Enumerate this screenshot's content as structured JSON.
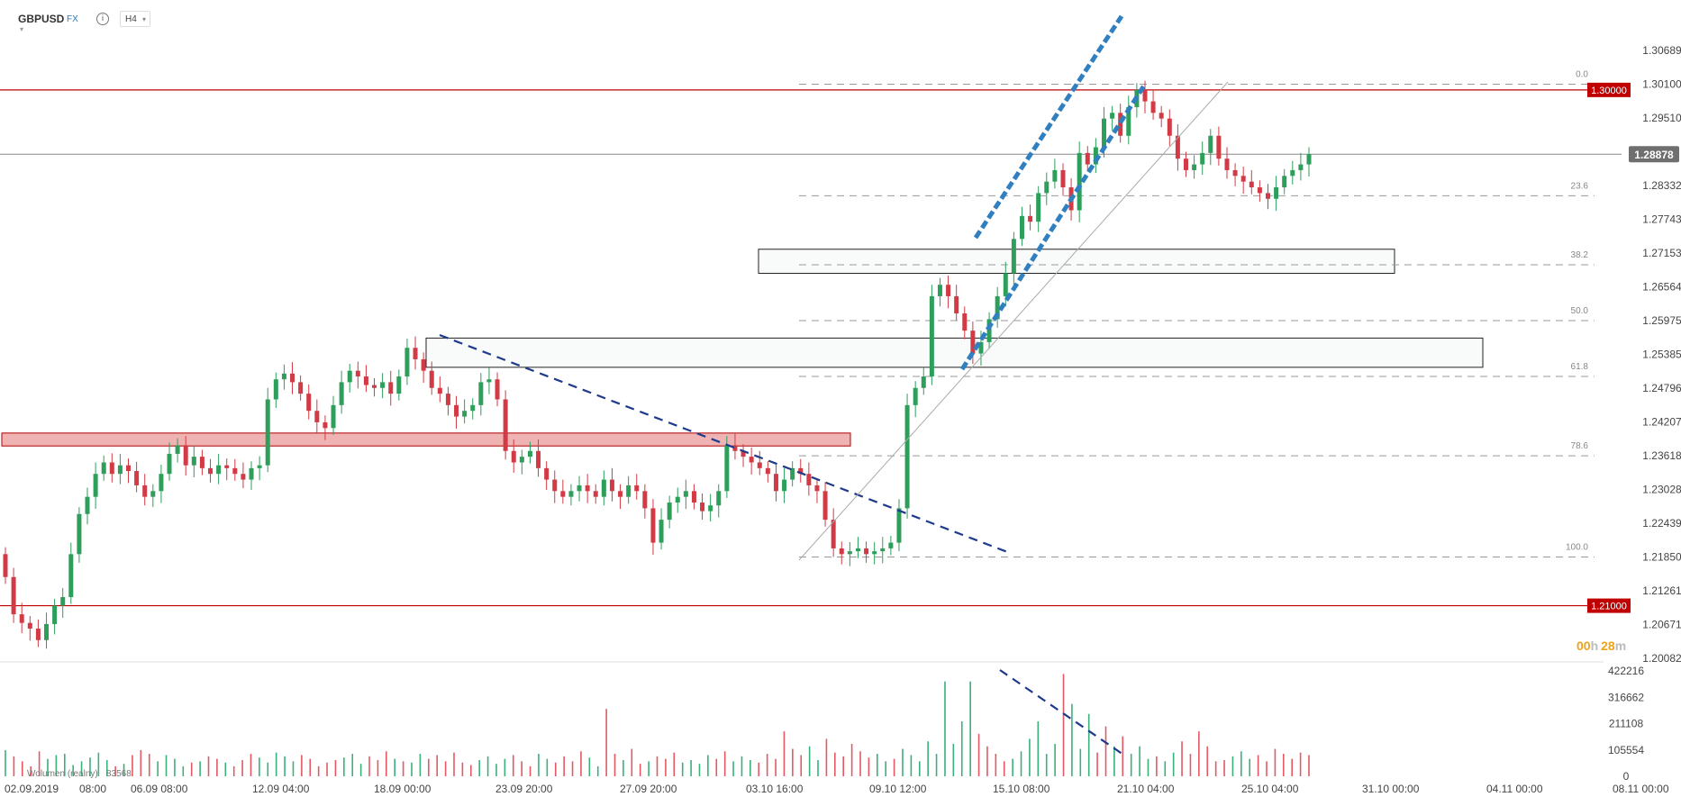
{
  "toolbar": {
    "symbol": "GBPUSD",
    "market": "FX",
    "info_icon": "info-icon",
    "timeframe": "H4",
    "timeframe_caret": "chevron-down-icon"
  },
  "chart_data": {
    "type": "candlestick",
    "instrument": "GBPUSD",
    "timeframe": "H4",
    "ylim": [
      1.20082,
      1.30689
    ],
    "y_ticks": [
      "1.30689",
      "1.30100",
      "1.29510",
      "1.28878",
      "1.28332",
      "1.27743",
      "1.27153",
      "1.26564",
      "1.25975",
      "1.25385",
      "1.24796",
      "1.24207",
      "1.23618",
      "1.23028",
      "1.22439",
      "1.21850",
      "1.21261",
      "1.20671",
      "1.20082"
    ],
    "x_ticks": [
      "02.09.2019",
      "08:00",
      "06.09 08:00",
      "12.09 04:00",
      "18.09 00:00",
      "23.09 20:00",
      "27.09 20:00",
      "03.10 16:00",
      "09.10 12:00",
      "15.10 08:00",
      "21.10 04:00",
      "25.10 04:00",
      "31.10 00:00",
      "04.11 00:00",
      "08.11 00:00"
    ],
    "current_price": "1.28878",
    "horizontal_levels": [
      {
        "label": "1.30000",
        "price": 1.3,
        "color": "#c00000"
      },
      {
        "label": "1.21000",
        "price": 1.21,
        "color": "#c00000"
      }
    ],
    "fibonacci": {
      "high": 1.301,
      "low": 1.2185,
      "levels": [
        {
          "ratio": "0.0",
          "price": 1.301
        },
        {
          "ratio": "23.6",
          "price": 1.28153
        },
        {
          "ratio": "38.2",
          "price": 1.26949
        },
        {
          "ratio": "50.0",
          "price": 1.25975
        },
        {
          "ratio": "61.8",
          "price": 1.25001
        },
        {
          "ratio": "78.6",
          "price": 1.23616
        },
        {
          "ratio": "100.0",
          "price": 1.2185
        }
      ]
    },
    "zones": [
      {
        "from": "02.09.2019",
        "to": "09.10",
        "price_high": 1.2395,
        "price_low": 1.2385,
        "style": "red"
      },
      {
        "from": "18.09",
        "to": "31.10",
        "price_high": 1.2567,
        "price_low": 1.2516,
        "style": "outline"
      },
      {
        "from": "09.10",
        "to": "25.10",
        "price_high": 1.2722,
        "price_low": 1.268,
        "style": "outline"
      }
    ],
    "countdown": {
      "hours": "00",
      "h_unit": "h",
      "minutes": "28",
      "m_unit": "m"
    },
    "closes": [
      1.215,
      1.2085,
      1.207,
      1.206,
      1.204,
      1.2068,
      1.21,
      1.2115,
      1.219,
      1.226,
      1.229,
      1.233,
      1.235,
      1.233,
      1.2345,
      1.2335,
      1.231,
      1.229,
      1.23,
      1.233,
      1.2365,
      1.238,
      1.2345,
      1.236,
      1.234,
      1.233,
      1.2345,
      1.234,
      1.233,
      1.232,
      1.234,
      1.2345,
      1.246,
      1.2495,
      1.2505,
      1.249,
      1.247,
      1.244,
      1.242,
      1.241,
      1.245,
      1.249,
      1.251,
      1.25,
      1.2485,
      1.248,
      1.249,
      1.247,
      1.25,
      1.255,
      1.253,
      1.251,
      1.248,
      1.247,
      1.245,
      1.243,
      1.244,
      1.245,
      1.249,
      1.2495,
      1.246,
      1.237,
      1.235,
      1.236,
      1.237,
      1.234,
      1.232,
      1.23,
      1.229,
      1.23,
      1.231,
      1.23,
      1.229,
      1.232,
      1.23,
      1.229,
      1.231,
      1.23,
      1.227,
      1.221,
      1.225,
      1.228,
      1.229,
      1.23,
      1.228,
      1.2265,
      1.2275,
      1.23,
      1.238,
      1.237,
      1.236,
      1.235,
      1.234,
      1.233,
      1.23,
      1.232,
      1.234,
      1.233,
      1.231,
      1.23,
      1.225,
      1.22,
      1.219,
      1.2195,
      1.22,
      1.219,
      1.2195,
      1.22,
      1.221,
      1.227,
      1.245,
      1.248,
      1.25,
      1.264,
      1.266,
      1.264,
      1.261,
      1.258,
      1.254,
      1.256,
      1.26,
      1.264,
      1.268,
      1.274,
      1.278,
      1.277,
      1.282,
      1.284,
      1.286,
      1.283,
      1.279,
      1.289,
      1.287,
      1.29,
      1.295,
      1.296,
      1.292,
      1.297,
      1.3,
      1.298,
      1.296,
      1.295,
      1.292,
      1.288,
      1.286,
      1.287,
      1.289,
      1.292,
      1.288,
      1.286,
      1.285,
      1.284,
      1.283,
      1.282,
      1.281,
      1.283,
      1.285,
      1.286,
      1.287,
      1.2888
    ],
    "volume": {
      "series_name": "Wolumen (realny)",
      "value": "83568",
      "y_ticks": [
        "422216",
        "316662",
        "211108",
        "105554",
        "0"
      ],
      "values": [
        105000,
        80000,
        60000,
        40000,
        100000,
        70000,
        85000,
        90000,
        45000,
        60000,
        75000,
        95000,
        65000,
        40000,
        50000,
        85000,
        105000,
        90000,
        60000,
        85000,
        70000,
        40000,
        55000,
        60000,
        80000,
        70000,
        55000,
        40000,
        65000,
        90000,
        75000,
        55000,
        95000,
        80000,
        60000,
        85000,
        70000,
        40000,
        55000,
        65000,
        75000,
        90000,
        50000,
        80000,
        65000,
        100000,
        70000,
        60000,
        55000,
        90000,
        70000,
        85000,
        60000,
        95000,
        55000,
        45000,
        65000,
        80000,
        50000,
        70000,
        85000,
        60000,
        40000,
        90000,
        70000,
        55000,
        80000,
        60000,
        100000,
        75000,
        40000,
        270000,
        90000,
        65000,
        110000,
        50000,
        60000,
        80000,
        70000,
        95000,
        55000,
        65000,
        50000,
        85000,
        70000,
        100000,
        60000,
        80000,
        65000,
        55000,
        90000,
        70000,
        180000,
        110000,
        85000,
        120000,
        65000,
        150000,
        95000,
        80000,
        130000,
        100000,
        75000,
        90000,
        60000,
        70000,
        110000,
        85000,
        60000,
        140000,
        90000,
        380000,
        130000,
        220000,
        380000,
        170000,
        120000,
        90000,
        60000,
        70000,
        100000,
        150000,
        220000,
        90000,
        130000,
        410000,
        290000,
        110000,
        250000,
        95000,
        200000,
        120000,
        160000,
        90000,
        120000,
        70000,
        80000,
        60000,
        95000,
        140000,
        90000,
        180000,
        120000,
        60000,
        65000,
        80000,
        100000,
        70000,
        85000,
        60000,
        110000,
        90000,
        70000,
        95000,
        85000
      ]
    }
  }
}
